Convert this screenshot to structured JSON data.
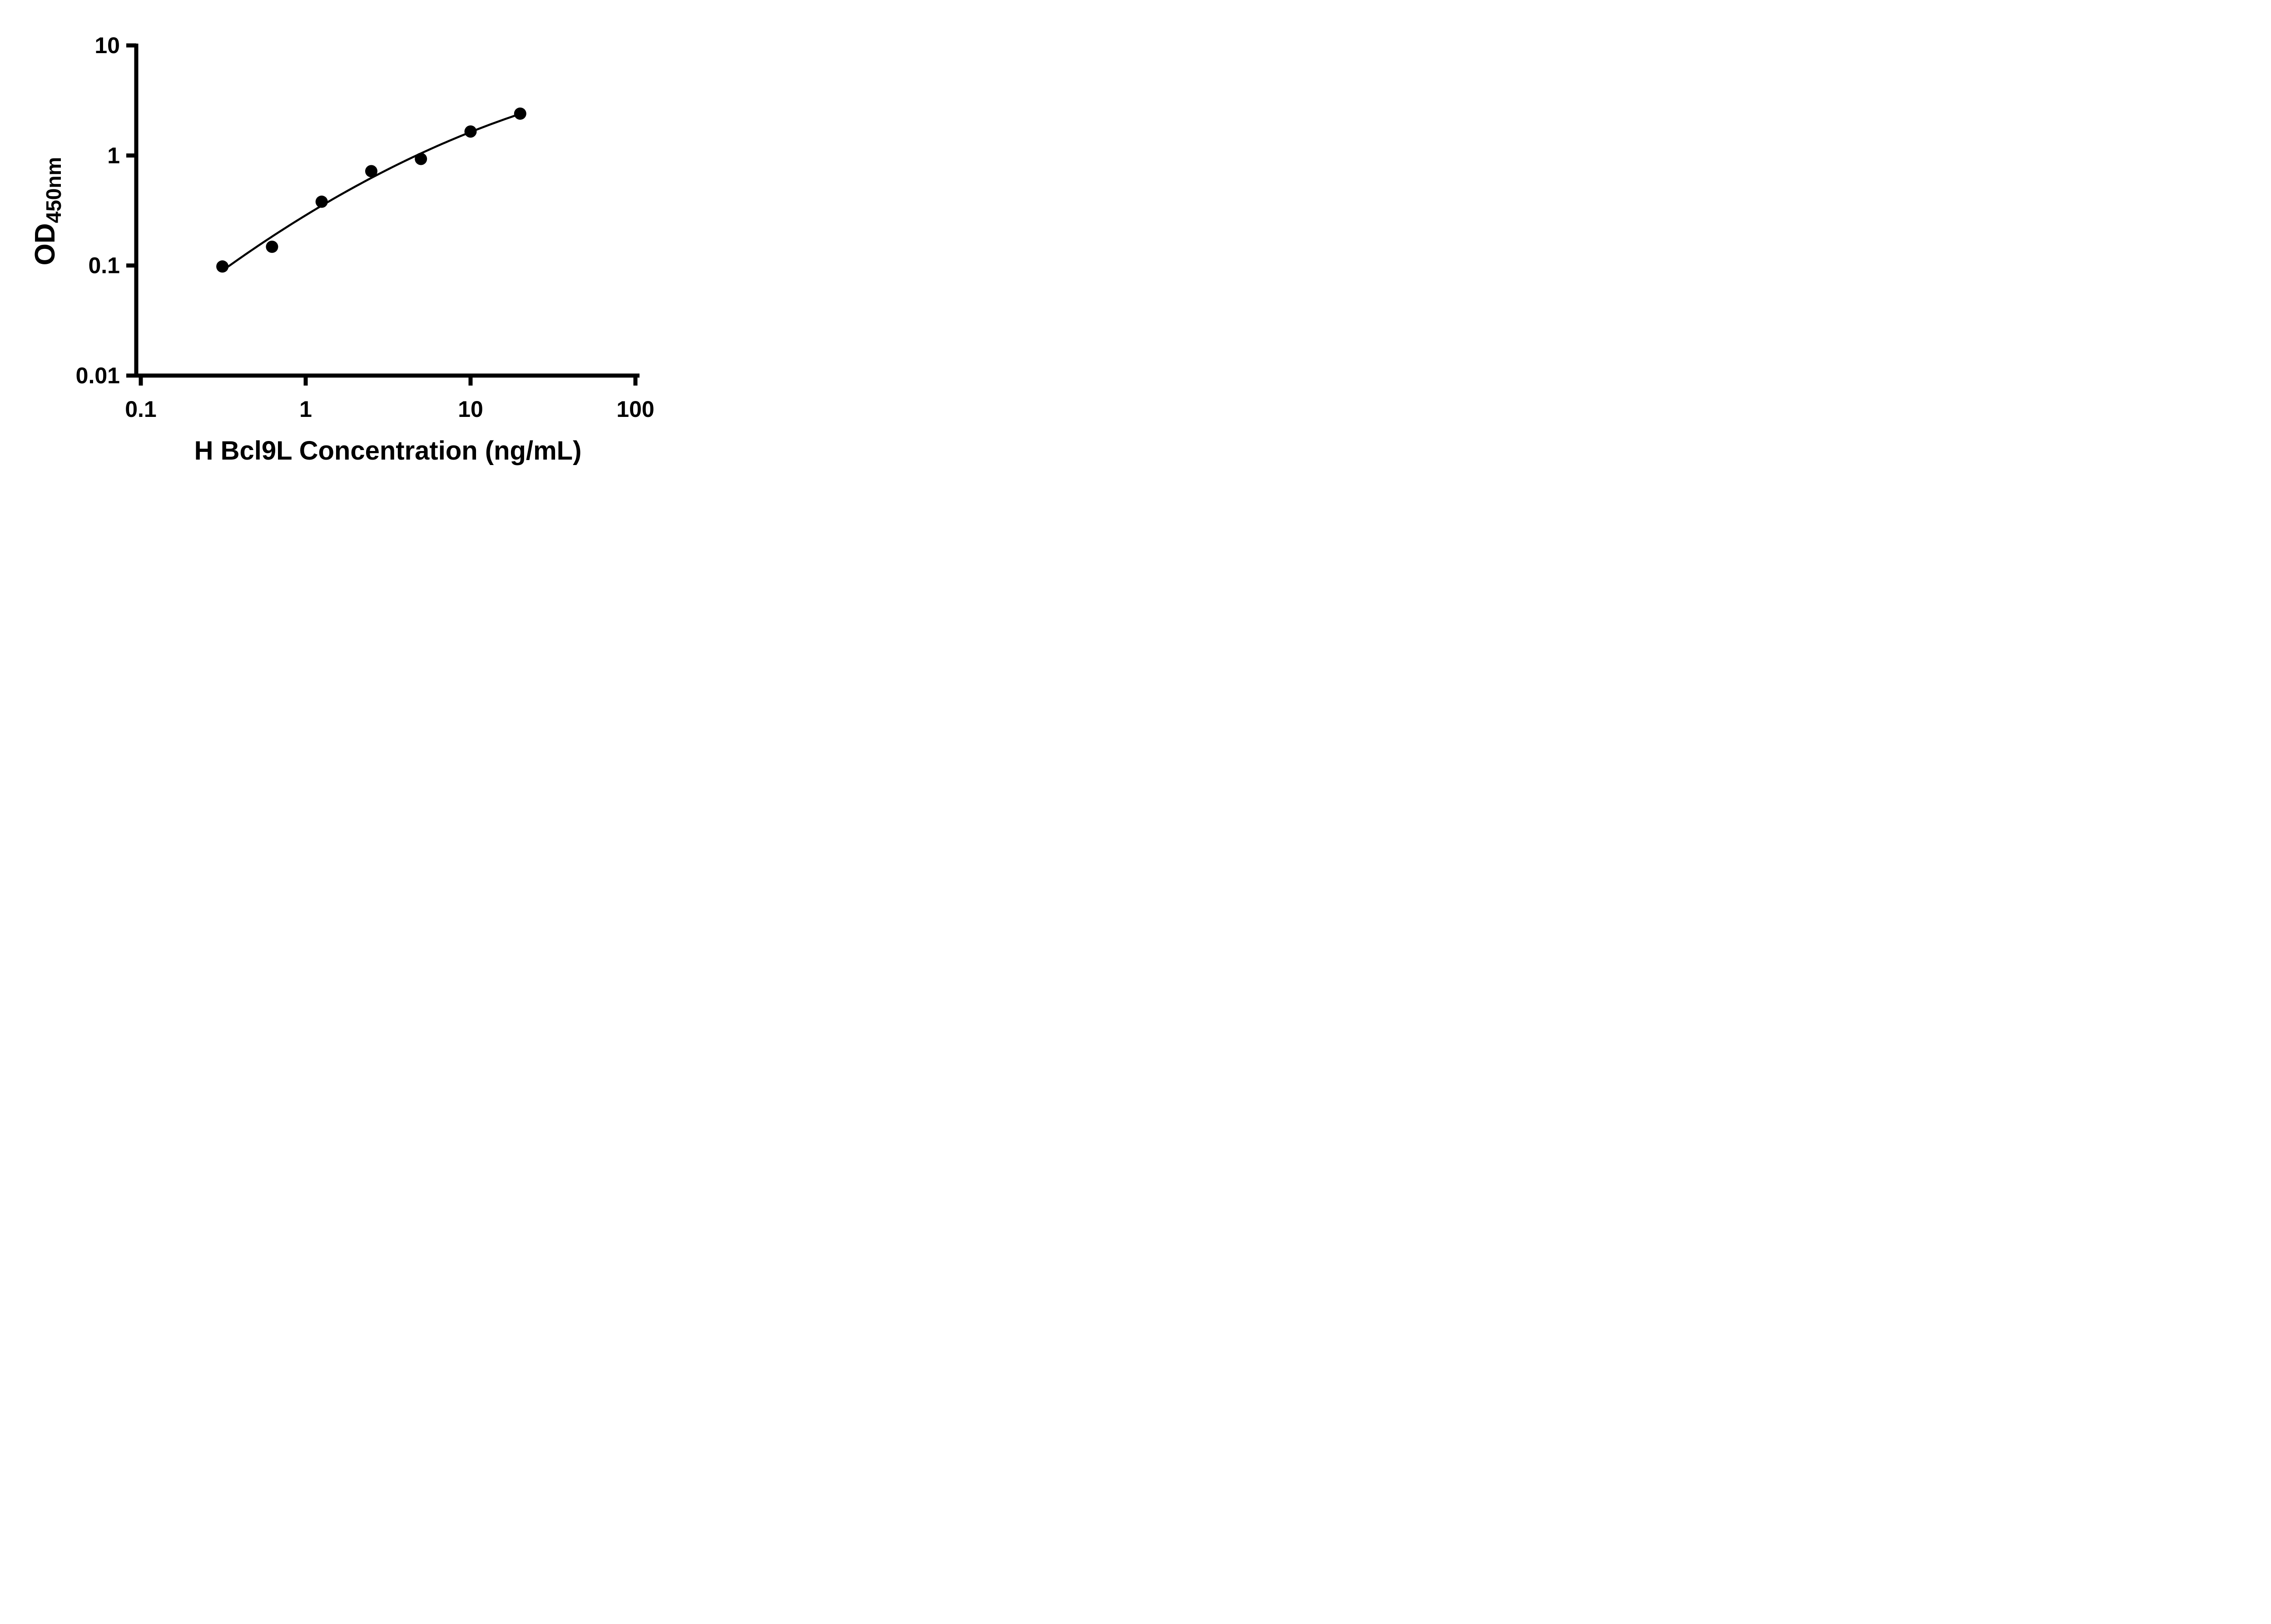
{
  "figure": {
    "background": "#ffffff"
  },
  "chart_data": {
    "type": "scatter",
    "title": "",
    "xlabel": "H Bcl9L Concentration (ng/mL)",
    "ylabel_main": "OD",
    "ylabel_sub": "450nm",
    "x_scale": "log10",
    "y_scale": "log10",
    "xlim": [
      0.1,
      100
    ],
    "ylim": [
      0.01,
      10
    ],
    "x_ticks": [
      0.1,
      1,
      10,
      100
    ],
    "x_tick_labels": [
      "0.1",
      "1",
      "10",
      "100"
    ],
    "y_ticks": [
      0.01,
      0.1,
      1,
      10
    ],
    "y_tick_labels": [
      "0.01",
      "0.1",
      "1",
      "10"
    ],
    "grid": false,
    "legend": null,
    "fit_curve": true,
    "fit_curve_style": "smooth quadratic fit in log-log space through the standard points",
    "series": [
      {
        "marker": "filled-circle",
        "color": "#000000",
        "x": [
          0.3125,
          0.625,
          1.25,
          2.5,
          5,
          10,
          20
        ],
        "y": [
          0.098,
          0.148,
          0.38,
          0.72,
          0.93,
          1.65,
          2.4
        ]
      }
    ],
    "styles": {
      "axis_color": "#000000",
      "point_color": "#000000",
      "curve_color": "#000000",
      "background": "#ffffff"
    }
  }
}
